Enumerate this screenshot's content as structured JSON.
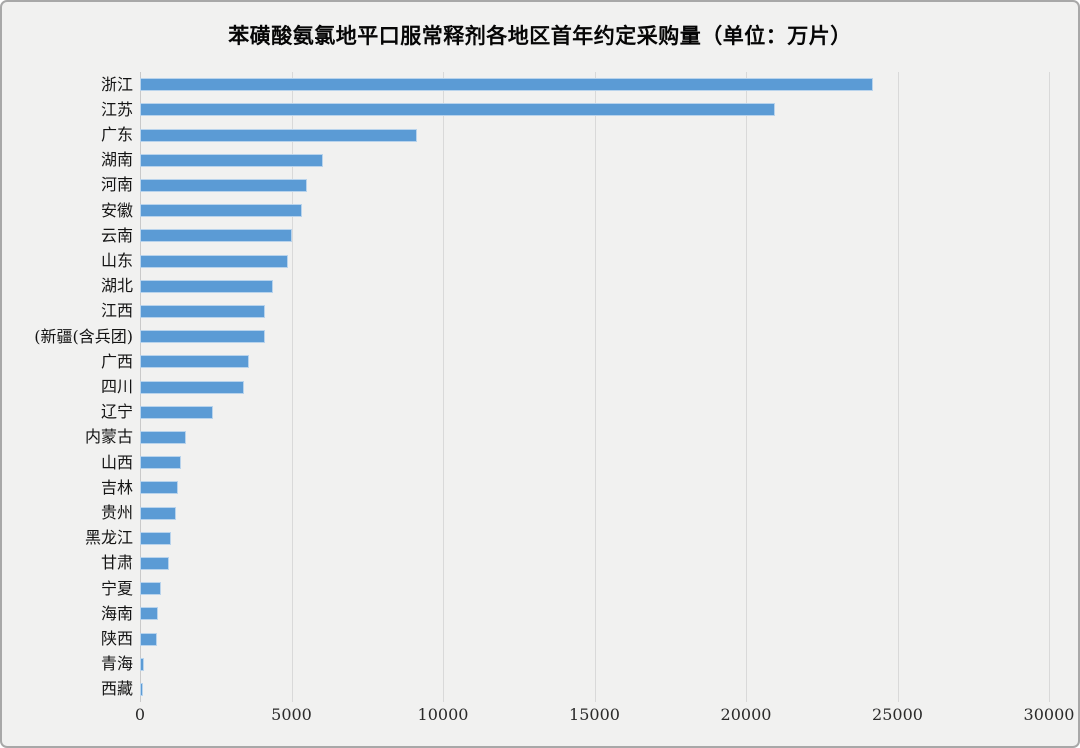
{
  "chart_data": {
    "type": "bar",
    "orientation": "horizontal",
    "title": "苯磺酸氨氯地平口服常释剂各地区首年约定采购量（单位：万片）",
    "categories": [
      "浙江",
      "江苏",
      "广东",
      "湖南",
      "河南",
      "安徽",
      "云南",
      "山东",
      "湖北",
      "江西",
      "(新疆(含兵团)",
      "广西",
      "四川",
      "辽宁",
      "内蒙古",
      "山西",
      "吉林",
      "贵州",
      "黑龙江",
      "甘肃",
      "宁夏",
      "海南",
      "陕西",
      "青海",
      "西藏"
    ],
    "values": [
      24200,
      20950,
      9150,
      6030,
      5500,
      5360,
      5000,
      4890,
      4400,
      4140,
      4140,
      3590,
      3430,
      2400,
      1530,
      1360,
      1240,
      1180,
      1010,
      950,
      690,
      600,
      560,
      130,
      100
    ],
    "xlabel": "",
    "ylabel": "",
    "xlim": [
      0,
      30000
    ],
    "x_ticks": [
      "0",
      "5000",
      "10000",
      "15000",
      "20000",
      "25000",
      "30000"
    ],
    "grid": "vertical-only",
    "legend": "none",
    "colors": {
      "bar_fill": "#5b9bd5",
      "bar_border": "#b8d3ec",
      "background": "#f1f1f0",
      "gridline": "#d9d9d9",
      "axis_line": "#c9c9c9",
      "frame_border": "#a8a8a8"
    }
  }
}
